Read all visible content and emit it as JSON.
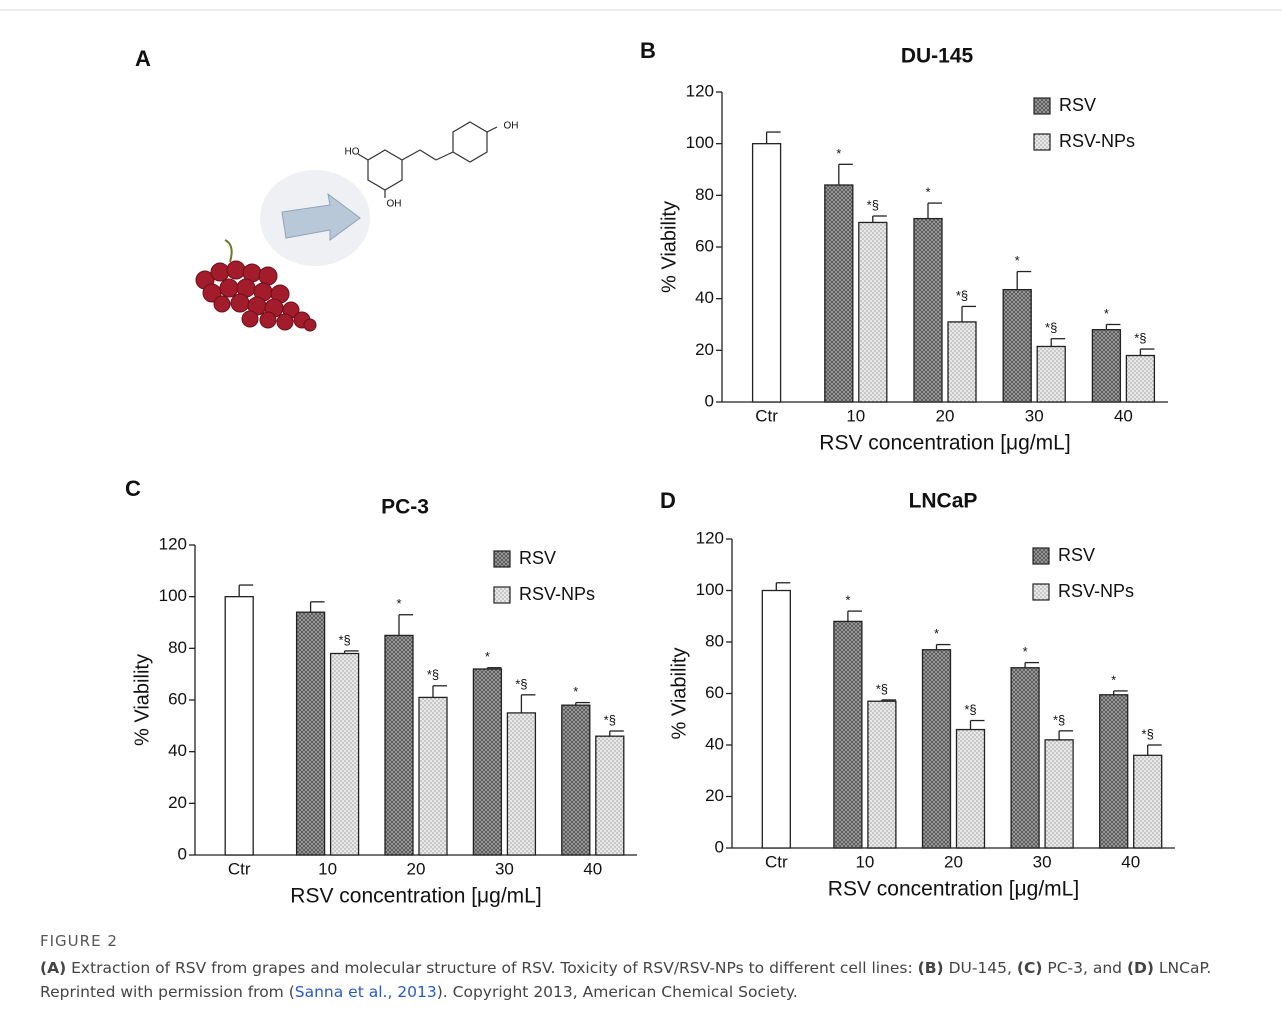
{
  "panel_a": {
    "label": "A",
    "molecule": [
      "HO",
      "OH",
      "OH"
    ]
  },
  "chart_data": [
    {
      "type": "bar",
      "panel": "B",
      "title": "DU-145",
      "xlabel": "RSV concentration [μg/mL]",
      "ylabel": "% Viability",
      "categories": [
        "Ctr",
        "10",
        "20",
        "30",
        "40"
      ],
      "ylim": [
        0,
        120
      ],
      "yticks": [
        0,
        20,
        40,
        60,
        80,
        100,
        120
      ],
      "legend": "top-right",
      "series": [
        {
          "color": "#ffffff",
          "fill": "solid",
          "values": [
            100,
            null,
            null,
            null,
            null
          ],
          "errors": [
            4.5,
            null,
            null,
            null,
            null
          ],
          "annotations": [
            null,
            null,
            null,
            null,
            null
          ]
        },
        {
          "name": "RSV",
          "color": "#555555",
          "fill": "crosshatch",
          "values": [
            null,
            84,
            71,
            43.5,
            28
          ],
          "errors": [
            null,
            8,
            6,
            7,
            2
          ],
          "annotations": [
            null,
            "*",
            "*",
            "*",
            "*"
          ]
        },
        {
          "name": "RSV-NPs",
          "color": "#e8e8e8",
          "fill": "dots",
          "values": [
            null,
            69.5,
            31,
            21.5,
            18
          ],
          "errors": [
            null,
            2.5,
            6,
            3,
            2.5
          ],
          "annotations": [
            null,
            "*§",
            "*§",
            "*§",
            "*§"
          ]
        }
      ]
    },
    {
      "type": "bar",
      "panel": "C",
      "title": "PC-3",
      "xlabel": "RSV concentration [μg/mL]",
      "ylabel": "% Viability",
      "categories": [
        "Ctr",
        "10",
        "20",
        "30",
        "40"
      ],
      "ylim": [
        0,
        120
      ],
      "yticks": [
        0,
        20,
        40,
        60,
        80,
        100,
        120
      ],
      "legend": "top-right",
      "series": [
        {
          "color": "#ffffff",
          "fill": "solid",
          "values": [
            100,
            null,
            null,
            null,
            null
          ],
          "errors": [
            4.5,
            null,
            null,
            null,
            null
          ],
          "annotations": [
            null,
            null,
            null,
            null,
            null
          ]
        },
        {
          "name": "RSV",
          "color": "#555555",
          "fill": "crosshatch",
          "values": [
            null,
            94,
            85,
            72,
            58
          ],
          "errors": [
            null,
            4,
            8,
            0.5,
            1
          ],
          "annotations": [
            null,
            null,
            "*",
            "*",
            "*"
          ]
        },
        {
          "name": "RSV-NPs",
          "color": "#e8e8e8",
          "fill": "dots",
          "values": [
            null,
            78,
            61,
            55,
            46
          ],
          "errors": [
            null,
            1,
            4.5,
            7,
            2
          ],
          "annotations": [
            null,
            "*§",
            "*§",
            "*§",
            "*§"
          ]
        }
      ]
    },
    {
      "type": "bar",
      "panel": "D",
      "title": "LNCaP",
      "xlabel": "RSV concentration [μg/mL]",
      "ylabel": "% Viability",
      "categories": [
        "Ctr",
        "10",
        "20",
        "30",
        "40"
      ],
      "ylim": [
        0,
        120
      ],
      "yticks": [
        0,
        20,
        40,
        60,
        80,
        100,
        120
      ],
      "legend": "top-right",
      "series": [
        {
          "color": "#ffffff",
          "fill": "solid",
          "values": [
            100,
            null,
            null,
            null,
            null
          ],
          "errors": [
            3,
            null,
            null,
            null,
            null
          ],
          "annotations": [
            null,
            null,
            null,
            null,
            null
          ]
        },
        {
          "name": "RSV",
          "color": "#555555",
          "fill": "crosshatch",
          "values": [
            null,
            88,
            77,
            70,
            59.5
          ],
          "errors": [
            null,
            4,
            2,
            2,
            1.5
          ],
          "annotations": [
            null,
            "*",
            "*",
            "*",
            "*"
          ]
        },
        {
          "name": "RSV-NPs",
          "color": "#e8e8e8",
          "fill": "dots",
          "values": [
            null,
            57,
            46,
            42,
            36
          ],
          "errors": [
            null,
            0.5,
            3.5,
            3.5,
            4
          ],
          "annotations": [
            null,
            "*§",
            "*§",
            "*§",
            "*§"
          ]
        }
      ]
    }
  ],
  "caption": {
    "label": "FIGURE 2",
    "segments": [
      {
        "text": "(A)",
        "bold": true
      },
      {
        "text": " Extraction of RSV from grapes and molecular structure of RSV. Toxicity of RSV/RSV-NPs to different cell lines: "
      },
      {
        "text": "(B)",
        "bold": true
      },
      {
        "text": " DU-145, "
      },
      {
        "text": "(C)",
        "bold": true
      },
      {
        "text": " PC-3, and "
      },
      {
        "text": "(D)",
        "bold": true
      },
      {
        "text": " LNCaP. Reprinted with permission from ("
      },
      {
        "text": "Sanna et al., 2013",
        "link": true
      },
      {
        "text": "). Copyright 2013, American Chemical Society."
      }
    ]
  }
}
